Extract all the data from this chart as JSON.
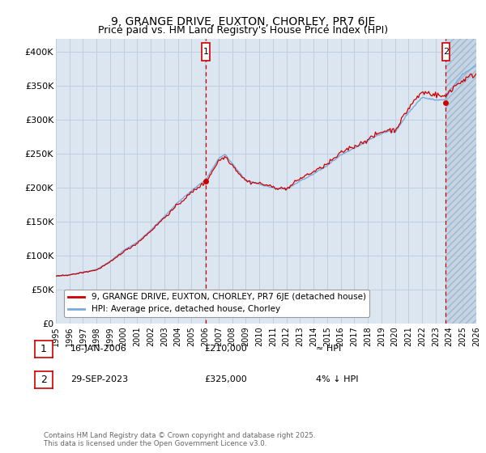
{
  "title": "9, GRANGE DRIVE, EUXTON, CHORLEY, PR7 6JE",
  "subtitle": "Price paid vs. HM Land Registry's House Price Index (HPI)",
  "background_color": "#dce6f1",
  "plot_bg_color": "#dce6f1",
  "legend_label_red": "9, GRANGE DRIVE, EUXTON, CHORLEY, PR7 6JE (detached house)",
  "legend_label_blue": "HPI: Average price, detached house, Chorley",
  "footer": "Contains HM Land Registry data © Crown copyright and database right 2025.\nThis data is licensed under the Open Government Licence v3.0.",
  "annotation1_date": "16-JAN-2006",
  "annotation1_price": "£210,000",
  "annotation1_hpi": "≈ HPI",
  "annotation2_date": "29-SEP-2023",
  "annotation2_price": "£325,000",
  "annotation2_hpi": "4% ↓ HPI",
  "sale1_x": 2006.04,
  "sale1_y": 210000,
  "sale2_x": 2023.75,
  "sale2_y": 325000,
  "ylim": [
    0,
    420000
  ],
  "xlim": [
    1995,
    2026
  ],
  "yticks": [
    0,
    50000,
    100000,
    150000,
    200000,
    250000,
    300000,
    350000,
    400000
  ],
  "ytick_labels": [
    "£0",
    "£50K",
    "£100K",
    "£150K",
    "£200K",
    "£250K",
    "£300K",
    "£350K",
    "£400K"
  ],
  "xticks": [
    1995,
    1996,
    1997,
    1998,
    1999,
    2000,
    2001,
    2002,
    2003,
    2004,
    2005,
    2006,
    2007,
    2008,
    2009,
    2010,
    2011,
    2012,
    2013,
    2014,
    2015,
    2016,
    2017,
    2018,
    2019,
    2020,
    2021,
    2022,
    2023,
    2024,
    2025,
    2026
  ],
  "red_color": "#cc0000",
  "blue_color": "#7aaadd",
  "vline_color": "#cc0000",
  "grid_color": "#c0cfe0"
}
